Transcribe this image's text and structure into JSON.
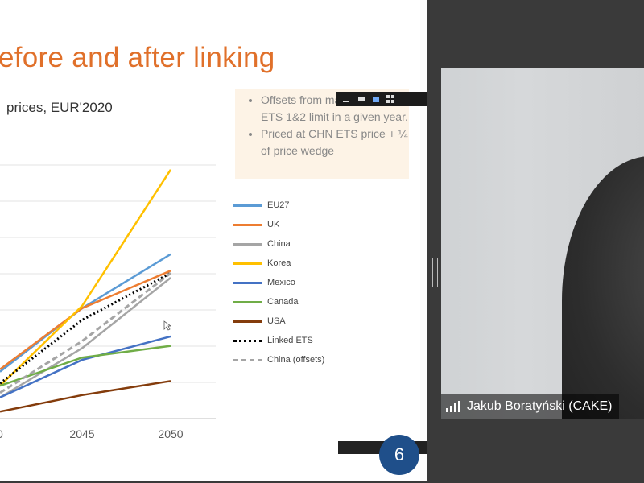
{
  "slide": {
    "title": "efore and after linking",
    "subtitle": "prices, EUR'2020",
    "notes": [
      "Offsets from max 10% of EU ETS 1&2 limit in a given year.",
      "Priced at CHN ETS price + ¼ of price wedge"
    ]
  },
  "participant": {
    "name": "Jakub Boratyński (CAKE)"
  },
  "icons": {
    "toolbar": [
      "minimize-icon",
      "restore-icon",
      "tile-icon",
      "grid-icon"
    ],
    "logo": "app-logo-icon",
    "cursor": "mouse-cursor-icon",
    "signal": "signal-strength-icon"
  },
  "logo_glyph": "6",
  "chart_data": {
    "type": "line",
    "x": [
      "0",
      "2045",
      "2050"
    ],
    "series": [
      {
        "name": "EU27",
        "color": "#5b9bd5",
        "values": [
          60,
          195,
          310
        ]
      },
      {
        "name": "UK",
        "color": "#ed7d31",
        "values": [
          65,
          195,
          275
        ]
      },
      {
        "name": "China",
        "color": "#a5a5a5",
        "values": [
          5,
          110,
          260
        ]
      },
      {
        "name": "Korea",
        "color": "#ffc000",
        "values": [
          30,
          200,
          490
        ]
      },
      {
        "name": "Mexico",
        "color": "#4472c4",
        "values": [
          5,
          85,
          135
        ]
      },
      {
        "name": "Canada",
        "color": "#70ad47",
        "values": [
          30,
          90,
          115
        ]
      },
      {
        "name": "USA",
        "color": "#843c0c",
        "values": [
          -25,
          10,
          40
        ]
      },
      {
        "name": "Linked ETS",
        "color": "#000000",
        "dash": "2,3",
        "values": [
          35,
          170,
          270
        ]
      },
      {
        "name": "China (offsets)",
        "color": "#a5a5a5",
        "dash": "7,4",
        "values": [
          15,
          125,
          270
        ]
      }
    ],
    "ylim": [
      -40,
      500
    ],
    "grid": true,
    "legend_position": "right"
  }
}
